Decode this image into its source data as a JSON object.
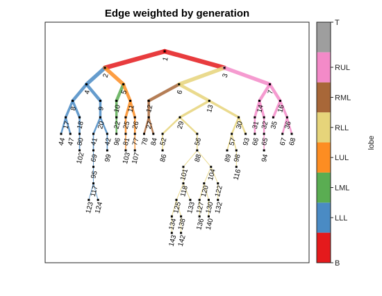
{
  "title": "Edge weighted by generation",
  "colorbar": {
    "label": "lobe",
    "categories": [
      "B",
      "LLL",
      "LML",
      "LUL",
      "RLL",
      "RML",
      "RUL",
      "T"
    ],
    "colors": [
      "#e41a1c",
      "#4a8bc4",
      "#5aad52",
      "#fd8d22",
      "#e6d47a",
      "#a86738",
      "#f38ac8",
      "#9e9e9e"
    ]
  },
  "nodes": [
    {
      "id": 1,
      "lobe": "T",
      "parent": null
    },
    {
      "id": 2,
      "lobe": "B",
      "parent": 1
    },
    {
      "id": 3,
      "lobe": "B",
      "parent": 1
    },
    {
      "id": 4,
      "lobe": "LLL",
      "parent": 2
    },
    {
      "id": 5,
      "lobe": "LUL",
      "parent": 2
    },
    {
      "id": 6,
      "lobe": "RLL",
      "parent": 3
    },
    {
      "id": 7,
      "lobe": "RUL",
      "parent": 3
    },
    {
      "id": 8,
      "lobe": "LLL",
      "parent": 4
    },
    {
      "id": 9,
      "lobe": "LLL",
      "parent": 4
    },
    {
      "id": 10,
      "lobe": "LML",
      "parent": 5
    },
    {
      "id": 11,
      "lobe": "LUL",
      "parent": 5
    },
    {
      "id": 12,
      "lobe": "RML",
      "parent": 6
    },
    {
      "id": 13,
      "lobe": "RLL",
      "parent": 6
    },
    {
      "id": 14,
      "lobe": "RUL",
      "parent": 7
    },
    {
      "id": 16,
      "lobe": "RUL",
      "parent": 7
    },
    {
      "id": 17,
      "lobe": "LLL",
      "parent": 8
    },
    {
      "id": 18,
      "lobe": "LLL",
      "parent": 8
    },
    {
      "id": 20,
      "lobe": "LLL",
      "parent": 9
    },
    {
      "id": 22,
      "lobe": "LML",
      "parent": 10
    },
    {
      "id": 25,
      "lobe": "LUL",
      "parent": 11
    },
    {
      "id": 26,
      "lobe": "LUL",
      "parent": 11
    },
    {
      "id": 27,
      "lobe": "RML",
      "parent": 12
    },
    {
      "id": 29,
      "lobe": "RLL",
      "parent": 13
    },
    {
      "id": 30,
      "lobe": "RLL",
      "parent": 13
    },
    {
      "id": 31,
      "lobe": "RUL",
      "parent": 14
    },
    {
      "id": 32,
      "lobe": "RUL",
      "parent": 14
    },
    {
      "id": 35,
      "lobe": "RUL",
      "parent": 16
    },
    {
      "id": 36,
      "lobe": "RUL",
      "parent": 16
    },
    {
      "id": 41,
      "lobe": "LLL",
      "parent": 20
    },
    {
      "id": 42,
      "lobe": "LLL",
      "parent": 20
    },
    {
      "id": 44,
      "lobe": "LLL",
      "parent": 17
    },
    {
      "id": 47,
      "lobe": "LLL",
      "parent": 17
    },
    {
      "id": 52,
      "lobe": "RLL",
      "parent": 29
    },
    {
      "id": 56,
      "lobe": "RLL",
      "parent": 29
    },
    {
      "id": 57,
      "lobe": "RLL",
      "parent": 30
    },
    {
      "id": 65,
      "lobe": "RUL",
      "parent": 32
    },
    {
      "id": 66,
      "lobe": "RUL",
      "parent": 31
    },
    {
      "id": 67,
      "lobe": "RUL",
      "parent": 36
    },
    {
      "id": 68,
      "lobe": "RUL",
      "parent": 36
    },
    {
      "id": 69,
      "lobe": "LLL",
      "parent": 41
    },
    {
      "id": 77,
      "lobe": "LUL",
      "parent": 26
    },
    {
      "id": 78,
      "lobe": "RML",
      "parent": 27
    },
    {
      "id": 80,
      "lobe": "LLL",
      "parent": 18
    },
    {
      "id": 81,
      "lobe": "LUL",
      "parent": 25
    },
    {
      "id": 84,
      "lobe": "RML",
      "parent": 27
    },
    {
      "id": 86,
      "lobe": "RLL",
      "parent": 52
    },
    {
      "id": 88,
      "lobe": "RLL",
      "parent": 56
    },
    {
      "id": 89,
      "lobe": "RLL",
      "parent": 57
    },
    {
      "id": 93,
      "lobe": "RLL",
      "parent": 30
    },
    {
      "id": 94,
      "lobe": "RUL",
      "parent": 65
    },
    {
      "id": 95,
      "lobe": "LLL",
      "parent": 69
    },
    {
      "id": 96,
      "lobe": "LML",
      "parent": 22
    },
    {
      "id": 98,
      "lobe": "RLL",
      "parent": 57
    },
    {
      "id": 99,
      "lobe": "LLL",
      "parent": 42
    },
    {
      "id": 101,
      "lobe": "RLL",
      "parent": 88
    },
    {
      "id": 102,
      "lobe": "LLL",
      "parent": 80
    },
    {
      "id": 103,
      "lobe": "LUL",
      "parent": 81
    },
    {
      "id": 104,
      "lobe": "RLL",
      "parent": 88
    },
    {
      "id": 107,
      "lobe": "LUL",
      "parent": 77
    },
    {
      "id": 116,
      "lobe": "RLL",
      "parent": 98
    },
    {
      "id": 117,
      "lobe": "LLL",
      "parent": 95
    },
    {
      "id": 118,
      "lobe": "RLL",
      "parent": 101
    },
    {
      "id": 120,
      "lobe": "RLL",
      "parent": 104
    },
    {
      "id": 122,
      "lobe": "RLL",
      "parent": 104
    },
    {
      "id": 123,
      "lobe": "LLL",
      "parent": 117
    },
    {
      "id": 124,
      "lobe": "LLL",
      "parent": 117
    },
    {
      "id": 125,
      "lobe": "RLL",
      "parent": 118
    },
    {
      "id": 127,
      "lobe": "RLL",
      "parent": 120
    },
    {
      "id": 130,
      "lobe": "RLL",
      "parent": 120
    },
    {
      "id": 132,
      "lobe": "RLL",
      "parent": 122
    },
    {
      "id": 133,
      "lobe": "RLL",
      "parent": 118
    },
    {
      "id": 134,
      "lobe": "RLL",
      "parent": 125
    },
    {
      "id": 136,
      "lobe": "RLL",
      "parent": 127
    },
    {
      "id": 138,
      "lobe": "RLL",
      "parent": 125
    },
    {
      "id": 140,
      "lobe": "RLL",
      "parent": 130
    },
    {
      "id": 142,
      "lobe": "RLL",
      "parent": 138
    },
    {
      "id": 143,
      "lobe": "RLL",
      "parent": 134
    }
  ]
}
